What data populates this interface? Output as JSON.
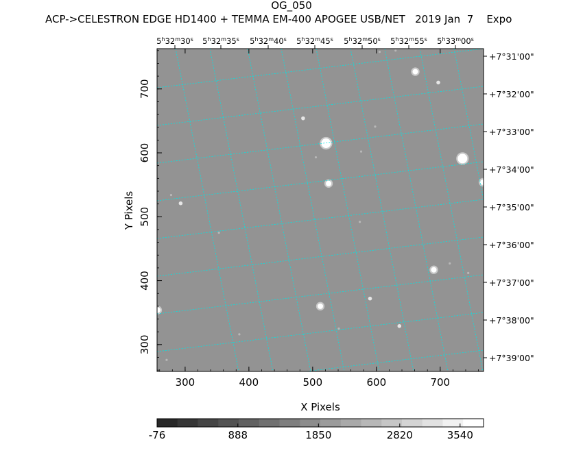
{
  "header": {
    "object_name": "OG_050",
    "subtitle": "ACP->CELESTRON EDGE HD1400 + TEMMA EM-400 APOGEE USB/NET   2019 Jan  7    Expo"
  },
  "axes": {
    "x_label": "X Pixels",
    "y_label": "Y Pixels",
    "x_ticks": [
      "300",
      "400",
      "500",
      "600",
      "700"
    ],
    "x_tick_values": [
      300,
      400,
      500,
      600,
      700
    ],
    "y_ticks": [
      "300",
      "400",
      "500",
      "600",
      "700"
    ],
    "y_tick_values": [
      300,
      400,
      500,
      600,
      700
    ],
    "x_range": [
      256,
      768
    ],
    "y_range": [
      258,
      763
    ],
    "ra_ticks": [
      {
        "h": "5",
        "m": "32",
        "s": "30"
      },
      {
        "h": "5",
        "m": "32",
        "s": "35"
      },
      {
        "h": "5",
        "m": "32",
        "s": "40"
      },
      {
        "h": "5",
        "m": "32",
        "s": "45"
      },
      {
        "h": "5",
        "m": "32",
        "s": "50"
      },
      {
        "h": "5",
        "m": "32",
        "s": "55"
      },
      {
        "h": "5",
        "m": "33",
        "s": "00"
      }
    ],
    "dec_ticks": [
      "+7°31'00\"",
      "+7°32'00\"",
      "+7°33'00\"",
      "+7°34'00\"",
      "+7°35'00\"",
      "+7°36'00\"",
      "+7°37'00\"",
      "+7°38'00\"",
      "+7°39'00\""
    ]
  },
  "colorbar": {
    "labels": [
      "-76",
      "888",
      "1850",
      "2820",
      "3540"
    ],
    "label_values": [
      -76,
      888,
      1850,
      2820,
      3540
    ],
    "range": [
      -76,
      3820
    ],
    "steps": 16
  },
  "colors": {
    "background_gray": "#939393",
    "grid": "#00e5e5",
    "star": "#ffffff"
  },
  "stars": [
    {
      "x": 521,
      "y": 615,
      "size": "bright"
    },
    {
      "x": 735,
      "y": 591,
      "size": "bright"
    },
    {
      "x": 525,
      "y": 552,
      "size": "medium"
    },
    {
      "x": 661,
      "y": 727,
      "size": "medium"
    },
    {
      "x": 690,
      "y": 417,
      "size": "medium"
    },
    {
      "x": 512,
      "y": 360,
      "size": "medium"
    },
    {
      "x": 257,
      "y": 354,
      "size": "medium"
    },
    {
      "x": 767,
      "y": 554,
      "size": "medium"
    },
    {
      "x": 636,
      "y": 329,
      "size": "small"
    },
    {
      "x": 590,
      "y": 372,
      "size": "small"
    },
    {
      "x": 485,
      "y": 654,
      "size": "small"
    },
    {
      "x": 293,
      "y": 521,
      "size": "small"
    },
    {
      "x": 697,
      "y": 710,
      "size": "small"
    },
    {
      "x": 505,
      "y": 593,
      "size": "faint"
    },
    {
      "x": 271,
      "y": 276,
      "size": "faint"
    },
    {
      "x": 574,
      "y": 492,
      "size": "faint"
    },
    {
      "x": 541,
      "y": 325,
      "size": "faint"
    },
    {
      "x": 385,
      "y": 316,
      "size": "faint"
    },
    {
      "x": 278,
      "y": 534,
      "size": "faint"
    },
    {
      "x": 598,
      "y": 641,
      "size": "faint"
    },
    {
      "x": 605,
      "y": 758,
      "size": "faint"
    },
    {
      "x": 715,
      "y": 427,
      "size": "faint"
    },
    {
      "x": 353,
      "y": 475,
      "size": "faint"
    },
    {
      "x": 630,
      "y": 760,
      "size": "faint"
    },
    {
      "x": 576,
      "y": 602,
      "size": "faint"
    },
    {
      "x": 744,
      "y": 412,
      "size": "faint"
    }
  ]
}
